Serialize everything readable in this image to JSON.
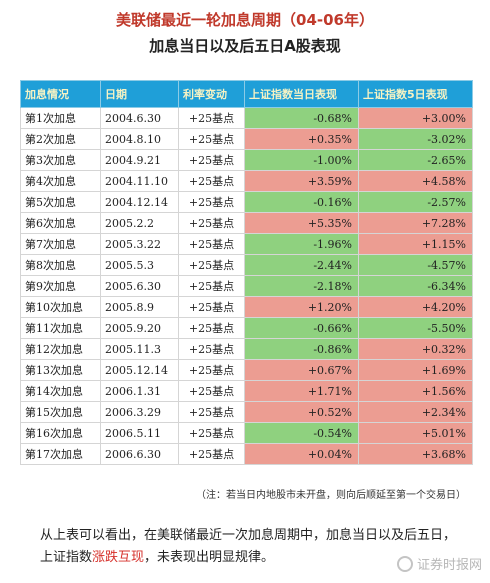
{
  "title": "美联储最近一轮加息周期（04-06年）",
  "subtitle": "加息当日以及后五日A股表现",
  "table": {
    "headers": [
      "加息情况",
      "日期",
      "利率变动",
      "上证指数当日表现",
      "上证指数5日表现"
    ],
    "rows": [
      {
        "label": "第1次加息",
        "date": "2004.6.30",
        "rate": "+25基点",
        "day": "-0.68%",
        "five": "+3.00%"
      },
      {
        "label": "第2次加息",
        "date": "2004.8.10",
        "rate": "+25基点",
        "day": "+0.35%",
        "five": "-3.02%"
      },
      {
        "label": "第3次加息",
        "date": "2004.9.21",
        "rate": "+25基点",
        "day": "-1.00%",
        "five": "-2.65%"
      },
      {
        "label": "第4次加息",
        "date": "2004.11.10",
        "rate": "+25基点",
        "day": "+3.59%",
        "five": "+4.58%"
      },
      {
        "label": "第5次加息",
        "date": "2004.12.14",
        "rate": "+25基点",
        "day": "-0.16%",
        "five": "-2.57%"
      },
      {
        "label": "第6次加息",
        "date": "2005.2.2",
        "rate": "+25基点",
        "day": "+5.35%",
        "five": "+7.28%"
      },
      {
        "label": "第7次加息",
        "date": "2005.3.22",
        "rate": "+25基点",
        "day": "-1.96%",
        "five": "+1.15%"
      },
      {
        "label": "第8次加息",
        "date": "2005.5.3",
        "rate": "+25基点",
        "day": "-2.44%",
        "five": "-4.57%"
      },
      {
        "label": "第9次加息",
        "date": "2005.6.30",
        "rate": "+25基点",
        "day": "-2.18%",
        "five": "-6.34%"
      },
      {
        "label": "第10次加息",
        "date": "2005.8.9",
        "rate": "+25基点",
        "day": "+1.20%",
        "five": "+4.20%"
      },
      {
        "label": "第11次加息",
        "date": "2005.9.20",
        "rate": "+25基点",
        "day": "-0.66%",
        "five": "-5.50%"
      },
      {
        "label": "第12次加息",
        "date": "2005.11.3",
        "rate": "+25基点",
        "day": "-0.86%",
        "five": "+0.32%"
      },
      {
        "label": "第13次加息",
        "date": "2005.12.14",
        "rate": "+25基点",
        "day": "+0.67%",
        "five": "+1.69%"
      },
      {
        "label": "第14次加息",
        "date": "2006.1.31",
        "rate": "+25基点",
        "day": "+1.71%",
        "five": "+1.56%"
      },
      {
        "label": "第15次加息",
        "date": "2006.3.29",
        "rate": "+25基点",
        "day": "+0.52%",
        "five": "+2.34%"
      },
      {
        "label": "第16次加息",
        "date": "2006.5.11",
        "rate": "+25基点",
        "day": "-0.54%",
        "five": "+5.01%"
      },
      {
        "label": "第17次加息",
        "date": "2006.6.30",
        "rate": "+25基点",
        "day": "+0.04%",
        "five": "+3.68%"
      }
    ]
  },
  "note": "（注：若当日内地股市未开盘，则向后顺延至第一个交易日）",
  "paragraph": {
    "part1": "从上表可以看出，在美联储最近一次加息周期中，加息当日以及后五日，上证指数",
    "highlight": "涨跌互现",
    "part2": "，未表现出明显规律。"
  },
  "watermark": "证券时报网",
  "colors": {
    "header_bg": "#1f9fd8",
    "header_text": "#f6f3c4",
    "positive_bg": "#ec9d92",
    "negative_bg": "#8fd17f",
    "title_red": "#c0392b",
    "highlight_red": "#d6302b"
  }
}
